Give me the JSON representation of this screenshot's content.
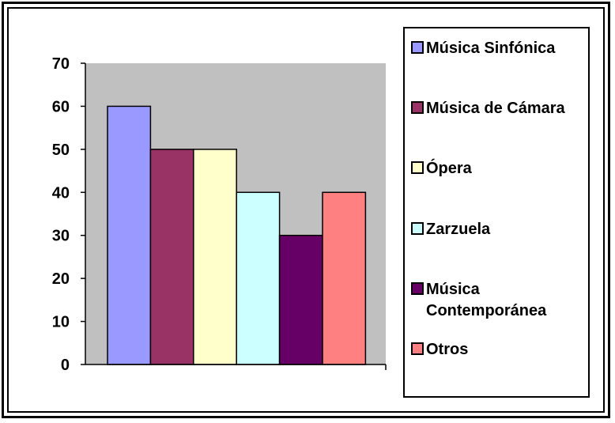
{
  "chart_data": {
    "type": "bar",
    "categories": [
      "Música Sinfónica",
      "Música de Cámara",
      "Ópera",
      "Zarzuela",
      "Música Contemporánea",
      "Otros"
    ],
    "values": [
      60,
      50,
      50,
      40,
      30,
      40
    ],
    "colors": [
      "#9999ff",
      "#993366",
      "#ffffcc",
      "#ccffff",
      "#660066",
      "#ff8080"
    ],
    "ylim": [
      0,
      70
    ],
    "yticks": [
      "0",
      "10",
      "20",
      "30",
      "40",
      "50",
      "60",
      "70"
    ],
    "plot_background": "#c0c0c0",
    "grid": false,
    "legend_position": "right",
    "title": "",
    "xlabel": "",
    "ylabel": ""
  }
}
